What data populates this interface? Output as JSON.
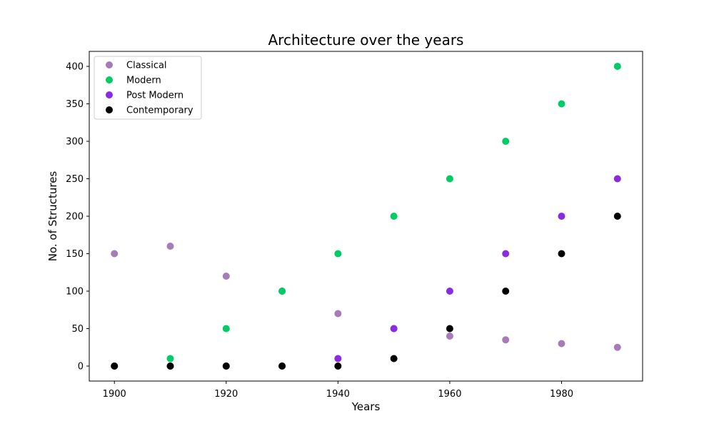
{
  "chart_data": {
    "type": "scatter",
    "title": "Architecture over the years",
    "xlabel": "Years",
    "ylabel": "No. of Structures",
    "x": [
      1900,
      1910,
      1920,
      1930,
      1940,
      1950,
      1960,
      1970,
      1980,
      1990
    ],
    "xlim": [
      1895.5,
      1994.5
    ],
    "ylim": [
      -20,
      420
    ],
    "xticks": [
      1900,
      1920,
      1940,
      1960,
      1980
    ],
    "yticks": [
      0,
      50,
      100,
      150,
      200,
      250,
      300,
      350,
      400
    ],
    "legend_position": "top-left",
    "grid": false,
    "series": [
      {
        "name": "Classical",
        "color": "#a77bb7",
        "values": [
          150,
          160,
          120,
          100,
          70,
          50,
          40,
          35,
          30,
          25
        ]
      },
      {
        "name": "Modern",
        "color": "#00cc66",
        "values": [
          0,
          10,
          50,
          100,
          150,
          200,
          250,
          300,
          350,
          400
        ]
      },
      {
        "name": "Post Modern",
        "color": "#8a2be2",
        "values": [
          0,
          0,
          0,
          0,
          10,
          50,
          100,
          150,
          200,
          250
        ]
      },
      {
        "name": "Contemporary",
        "color": "#000000",
        "values": [
          0,
          0,
          0,
          0,
          0,
          10,
          50,
          100,
          150,
          200
        ]
      }
    ]
  }
}
